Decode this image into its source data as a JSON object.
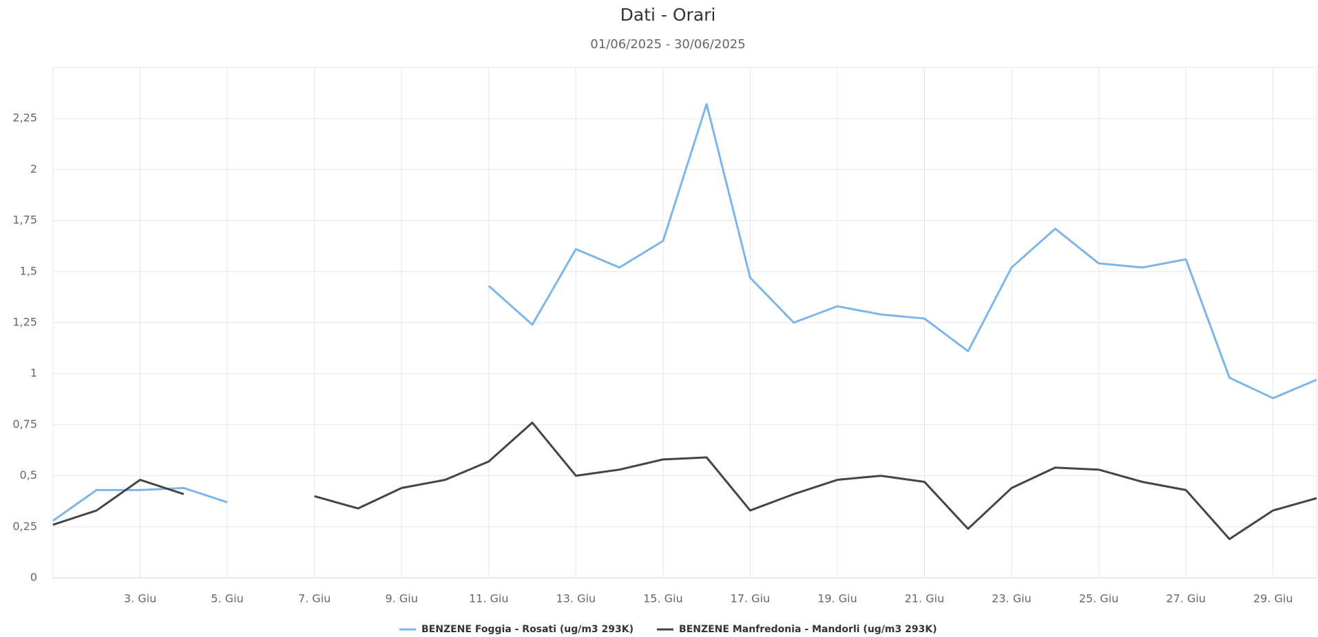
{
  "chart_data": {
    "type": "line",
    "title": "Dati - Orari",
    "subtitle": "01/06/2025 - 30/06/2025",
    "x": [
      1,
      2,
      3,
      4,
      5,
      6,
      7,
      8,
      9,
      10,
      11,
      12,
      13,
      14,
      15,
      16,
      17,
      18,
      19,
      20,
      21,
      22,
      23,
      24,
      25,
      26,
      27,
      28,
      29,
      30
    ],
    "xlim": [
      1,
      30
    ],
    "xticks": [
      {
        "value": 3,
        "label": "3. Giu"
      },
      {
        "value": 5,
        "label": "5. Giu"
      },
      {
        "value": 7,
        "label": "7. Giu"
      },
      {
        "value": 9,
        "label": "9. Giu"
      },
      {
        "value": 11,
        "label": "11. Giu"
      },
      {
        "value": 13,
        "label": "13. Giu"
      },
      {
        "value": 15,
        "label": "15. Giu"
      },
      {
        "value": 17,
        "label": "17. Giu"
      },
      {
        "value": 19,
        "label": "19. Giu"
      },
      {
        "value": 21,
        "label": "21. Giu"
      },
      {
        "value": 23,
        "label": "23. Giu"
      },
      {
        "value": 25,
        "label": "25. Giu"
      },
      {
        "value": 27,
        "label": "27. Giu"
      },
      {
        "value": 29,
        "label": "29. Giu"
      }
    ],
    "ylim": [
      0,
      2.5
    ],
    "yticks": [
      0,
      {
        "value": 0.25,
        "label": "0,25"
      },
      {
        "value": 0.5,
        "label": "0,5"
      },
      {
        "value": 0.75,
        "label": "0,75"
      },
      1,
      {
        "value": 1.25,
        "label": "1,25"
      },
      {
        "value": 1.5,
        "label": "1,5"
      },
      {
        "value": 1.75,
        "label": "1,75"
      },
      2,
      {
        "value": 2.25,
        "label": "2,25"
      }
    ],
    "grid": true,
    "legend": "bottom",
    "series": [
      {
        "name": "BENZENE Foggia - Rosati (ug/m3 293K)",
        "color": "#7cb5ec",
        "values": [
          0.28,
          0.43,
          0.43,
          0.44,
          0.37,
          null,
          null,
          null,
          null,
          null,
          1.43,
          1.24,
          1.61,
          1.52,
          1.65,
          2.32,
          1.47,
          1.25,
          1.33,
          1.29,
          1.27,
          1.11,
          1.52,
          1.71,
          1.54,
          1.52,
          1.56,
          0.98,
          0.88,
          0.97
        ]
      },
      {
        "name": "BENZENE Manfredonia - Mandorli (ug/m3 293K)",
        "color": "#434348",
        "values": [
          0.26,
          0.33,
          0.48,
          0.41,
          null,
          null,
          0.4,
          0.34,
          0.44,
          0.48,
          0.57,
          0.76,
          0.5,
          0.53,
          0.58,
          0.59,
          0.33,
          0.41,
          0.48,
          0.5,
          0.47,
          0.24,
          0.44,
          0.54,
          0.53,
          0.47,
          0.43,
          0.19,
          0.33,
          0.39
        ]
      }
    ]
  }
}
